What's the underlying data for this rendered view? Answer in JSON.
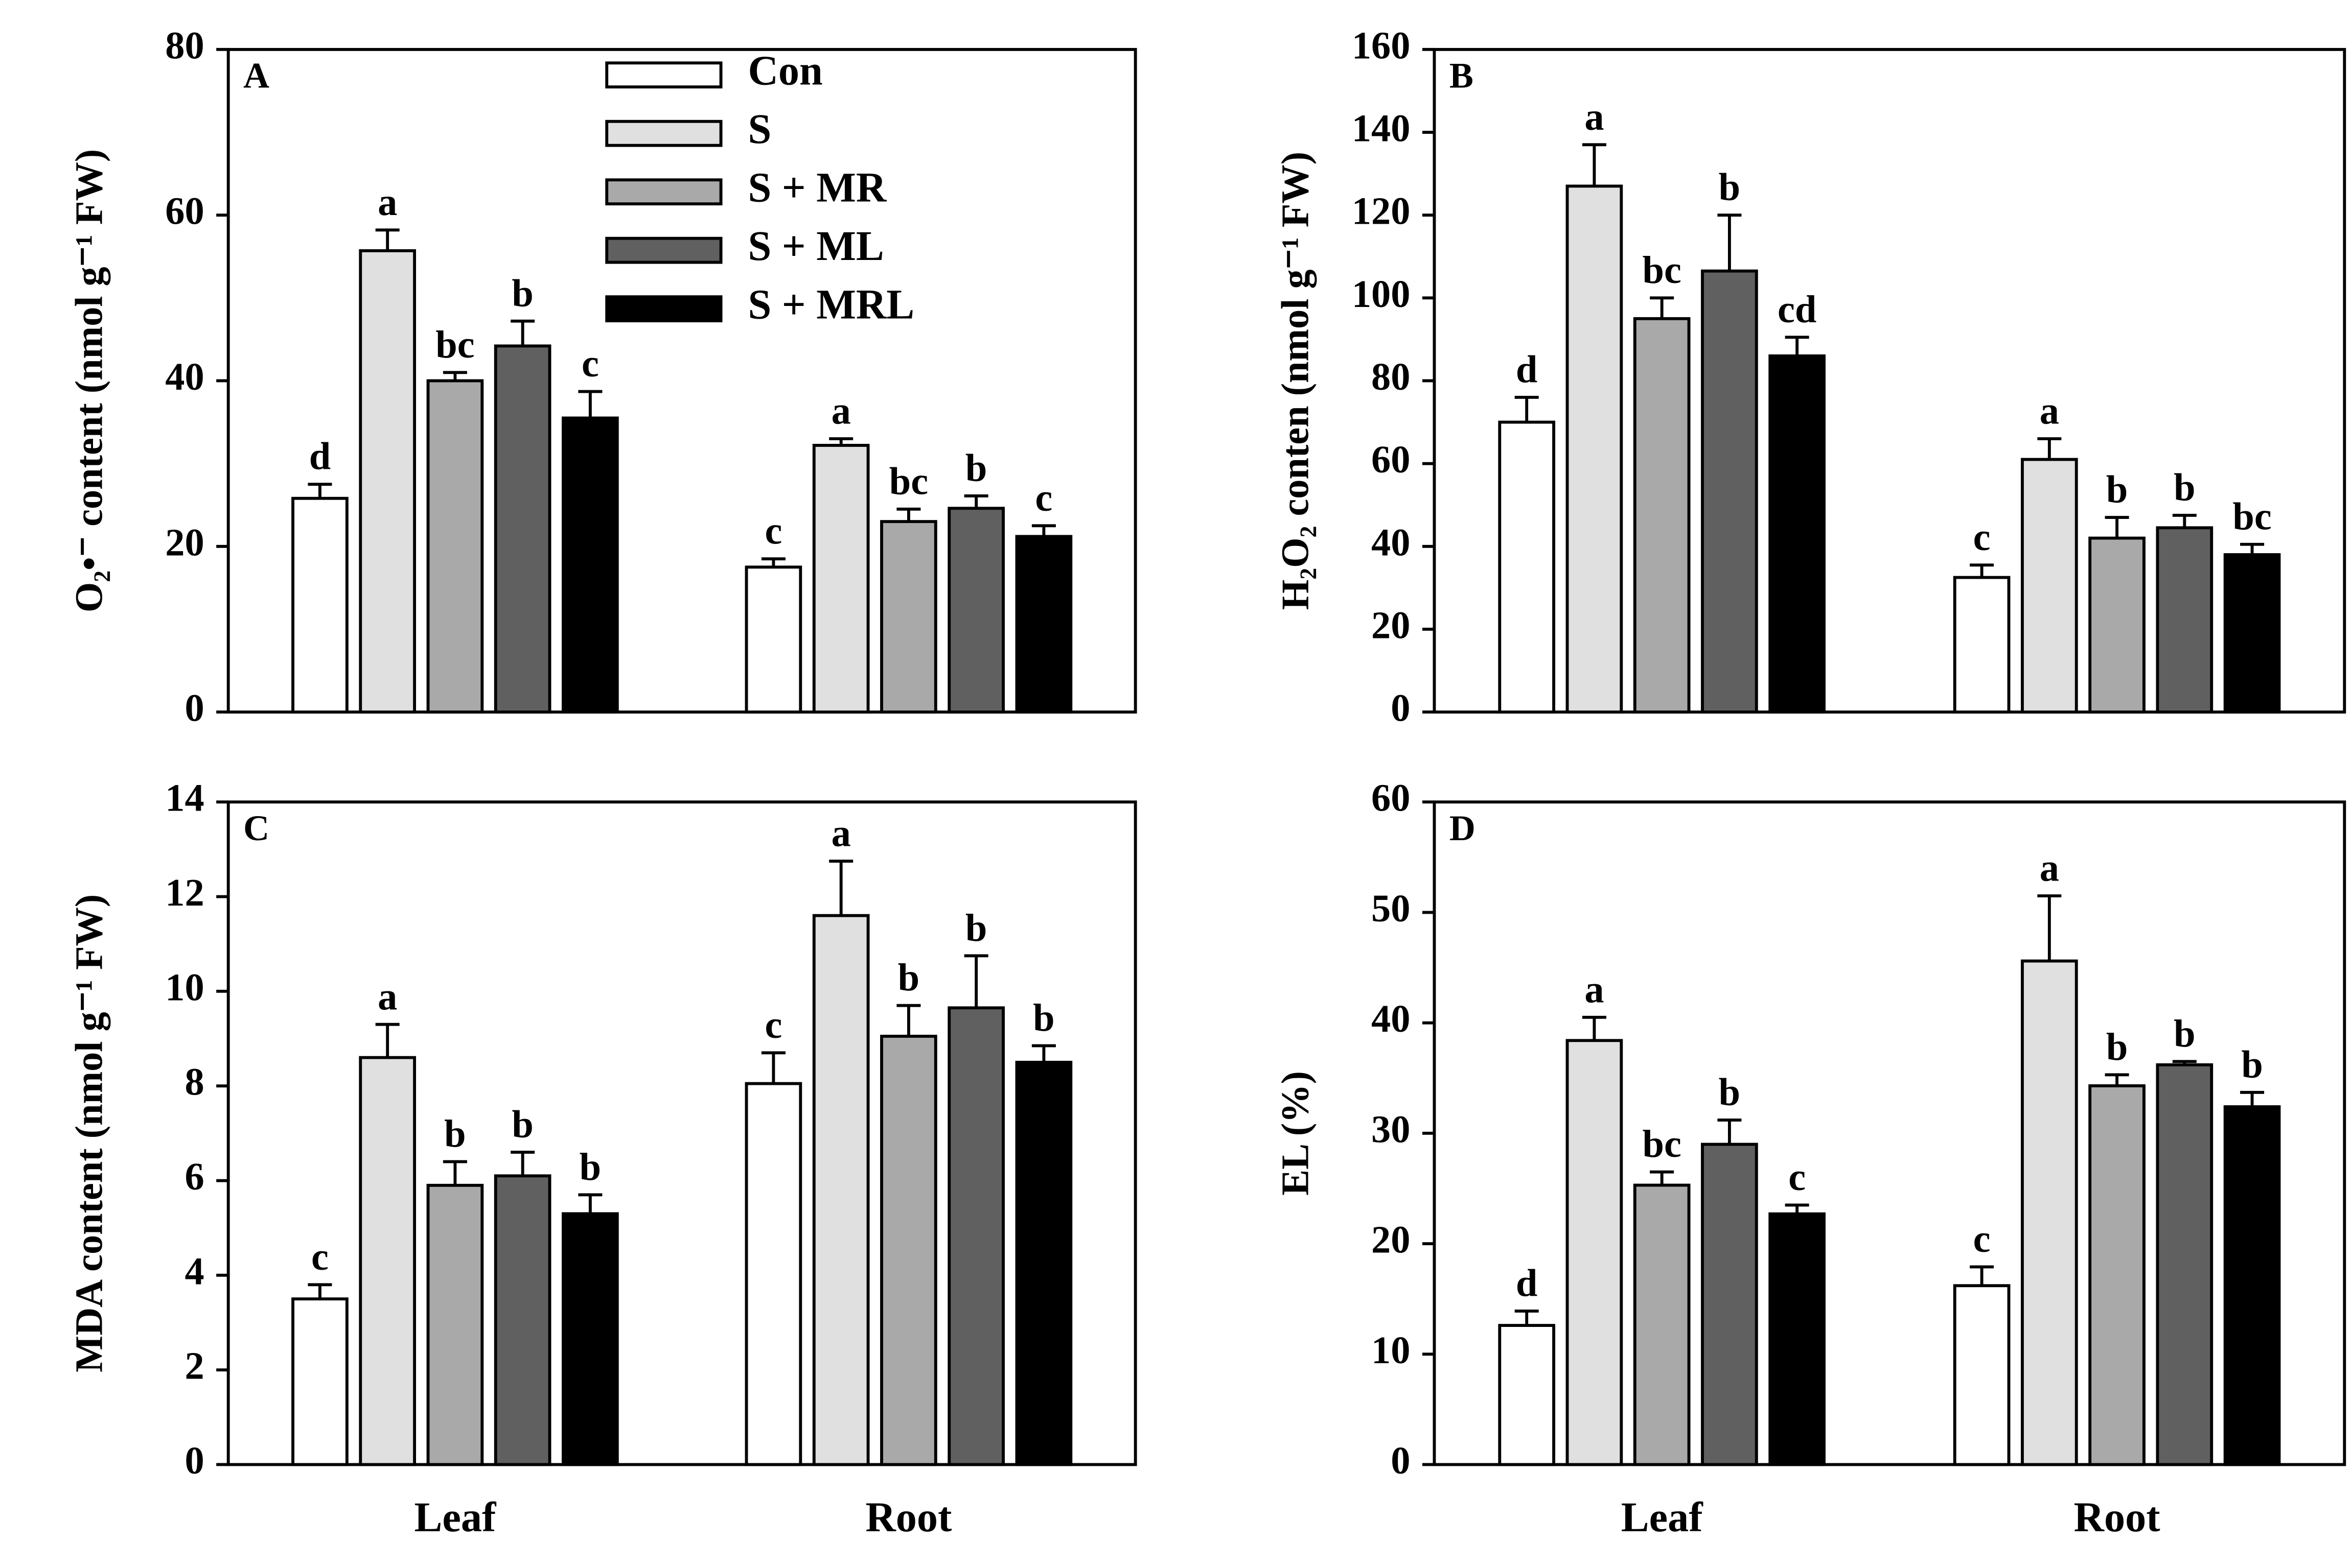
{
  "chart_data": [
    {
      "type": "bar",
      "panel_label": "A",
      "ylabel": "O₂•⁻ content (nmol g⁻¹ FW)",
      "ylim": [
        0,
        80
      ],
      "yticks": [
        0,
        20,
        40,
        60,
        80
      ],
      "legend": "upper center",
      "series": [
        {
          "name": "Con",
          "color": "#ffffff",
          "values": [
            25.8,
            17.5
          ],
          "errors": [
            1.7,
            1.0
          ],
          "labels": [
            "d",
            "c"
          ]
        },
        {
          "name": "S",
          "color": "#e0e0e0",
          "values": [
            55.7,
            32.2
          ],
          "errors": [
            2.5,
            0.8
          ],
          "labels": [
            "a",
            "a"
          ]
        },
        {
          "name": "S + MR",
          "color": "#a9a9a9",
          "values": [
            40.0,
            23.0
          ],
          "errors": [
            1.0,
            1.5
          ],
          "labels": [
            "bc",
            "bc"
          ]
        },
        {
          "name": "S + ML",
          "color": "#606060",
          "values": [
            44.2,
            24.6
          ],
          "errors": [
            3.0,
            1.5
          ],
          "labels": [
            "b",
            "b"
          ]
        },
        {
          "name": "S + MRL",
          "color": "#000000",
          "values": [
            35.5,
            21.2
          ],
          "errors": [
            3.2,
            1.3
          ],
          "labels": [
            "c",
            "c"
          ]
        }
      ]
    },
    {
      "type": "bar",
      "panel_label": "B",
      "ylabel": "H₂O₂ conten (nmol g⁻¹ FW)",
      "ylim": [
        0,
        160
      ],
      "yticks": [
        0,
        20,
        40,
        60,
        80,
        100,
        120,
        140,
        160
      ],
      "series": [
        {
          "color": "#ffffff",
          "values": [
            70,
            32.5
          ],
          "errors": [
            6,
            3
          ],
          "labels": [
            "d",
            "c"
          ]
        },
        {
          "color": "#e0e0e0",
          "values": [
            127,
            61
          ],
          "errors": [
            10,
            5
          ],
          "labels": [
            "a",
            "a"
          ]
        },
        {
          "color": "#a9a9a9",
          "values": [
            95,
            42
          ],
          "errors": [
            5,
            5
          ],
          "labels": [
            "bc",
            "b"
          ]
        },
        {
          "color": "#606060",
          "values": [
            106.5,
            44.5
          ],
          "errors": [
            13.5,
            3
          ],
          "labels": [
            "b",
            "b"
          ]
        },
        {
          "color": "#000000",
          "values": [
            86,
            38
          ],
          "errors": [
            4.5,
            2.5
          ],
          "labels": [
            "cd",
            "bc"
          ]
        }
      ]
    },
    {
      "type": "bar",
      "panel_label": "C",
      "ylabel": "MDA content (nmol g⁻¹ FW)",
      "ylim": [
        0,
        14
      ],
      "yticks": [
        0,
        2,
        4,
        6,
        8,
        10,
        12,
        14
      ],
      "categories": [
        "Leaf",
        "Root"
      ],
      "series": [
        {
          "color": "#ffffff",
          "values": [
            3.5,
            8.05
          ],
          "errors": [
            0.3,
            0.65
          ],
          "labels": [
            "c",
            "c"
          ]
        },
        {
          "color": "#e0e0e0",
          "values": [
            8.6,
            11.6
          ],
          "errors": [
            0.7,
            1.15
          ],
          "labels": [
            "a",
            "a"
          ]
        },
        {
          "color": "#a9a9a9",
          "values": [
            5.9,
            9.05
          ],
          "errors": [
            0.5,
            0.65
          ],
          "labels": [
            "b",
            "b"
          ]
        },
        {
          "color": "#606060",
          "values": [
            6.1,
            9.65
          ],
          "errors": [
            0.5,
            1.1
          ],
          "labels": [
            "b",
            "b"
          ]
        },
        {
          "color": "#000000",
          "values": [
            5.3,
            8.5
          ],
          "errors": [
            0.4,
            0.35
          ],
          "labels": [
            "b",
            "b"
          ]
        }
      ]
    },
    {
      "type": "bar",
      "panel_label": "D",
      "ylabel": "EL (%)",
      "ylim": [
        0,
        60
      ],
      "yticks": [
        0,
        10,
        20,
        30,
        40,
        50,
        60
      ],
      "categories": [
        "Leaf",
        "Root"
      ],
      "series": [
        {
          "color": "#ffffff",
          "values": [
            12.6,
            16.2
          ],
          "errors": [
            1.3,
            1.7
          ],
          "labels": [
            "d",
            "c"
          ]
        },
        {
          "color": "#e0e0e0",
          "values": [
            38.4,
            45.6
          ],
          "errors": [
            2.1,
            5.9
          ],
          "labels": [
            "a",
            "a"
          ]
        },
        {
          "color": "#a9a9a9",
          "values": [
            25.3,
            34.3
          ],
          "errors": [
            1.2,
            1.0
          ],
          "labels": [
            "bc",
            "b"
          ]
        },
        {
          "color": "#606060",
          "values": [
            29.0,
            36.2
          ],
          "errors": [
            2.2,
            0.3
          ],
          "labels": [
            "b",
            "b"
          ]
        },
        {
          "color": "#000000",
          "values": [
            22.7,
            32.4
          ],
          "errors": [
            0.8,
            1.3
          ],
          "labels": [
            "c",
            "b"
          ]
        }
      ]
    }
  ]
}
